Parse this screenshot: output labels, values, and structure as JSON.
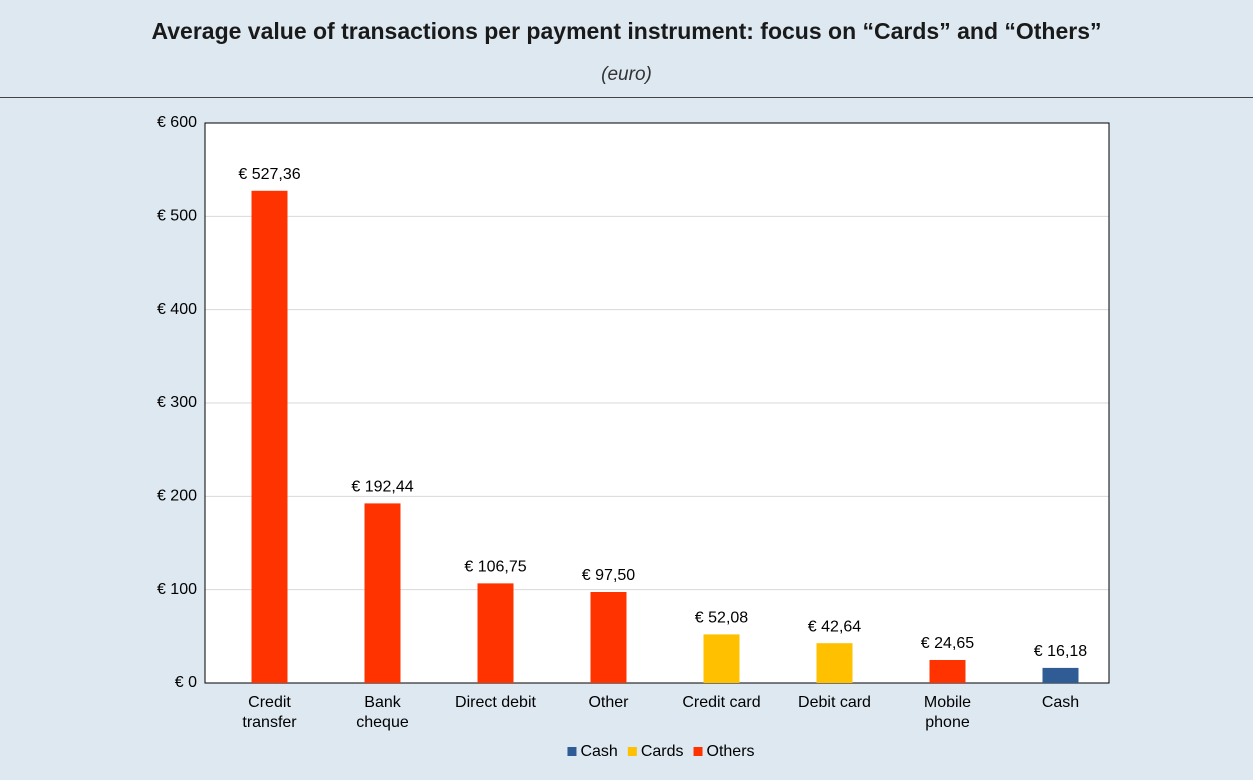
{
  "chart_data": {
    "type": "bar",
    "title": "Average value of transactions per payment instrument: focus on “Cards” and “Others”",
    "subtitle": "(euro)",
    "categories": [
      "Credit\ntransfer",
      "Bank\ncheque",
      "Direct debit",
      "Other",
      "Credit card",
      "Debit card",
      "Mobile\nphone",
      "Cash"
    ],
    "values": [
      527.36,
      192.44,
      106.75,
      97.5,
      52.08,
      42.64,
      24.65,
      16.18
    ],
    "value_labels": [
      "€ 527,36",
      "€ 192,44",
      "€ 106,75",
      "€ 97,50",
      "€ 52,08",
      "€ 42,64",
      "€ 24,65",
      "€ 16,18"
    ],
    "colors": [
      "#ff3300",
      "#ff3300",
      "#ff3300",
      "#ff3300",
      "#ffc000",
      "#ffc000",
      "#ff3300",
      "#2f5c95"
    ],
    "legend": [
      {
        "name": "Cash",
        "color": "#2f5c95"
      },
      {
        "name": "Cards",
        "color": "#ffc000"
      },
      {
        "name": "Others",
        "color": "#ff3300"
      }
    ],
    "ylim": [
      0,
      600
    ],
    "yticks": [
      {
        "value": 0,
        "label": "€ 0"
      },
      {
        "value": 100,
        "label": "€ 100"
      },
      {
        "value": 200,
        "label": "€ 200"
      },
      {
        "value": 300,
        "label": "€ 300"
      },
      {
        "value": 400,
        "label": "€ 400"
      },
      {
        "value": 500,
        "label": "€ 500"
      },
      {
        "value": 600,
        "label": "€ 600"
      }
    ],
    "grid": true
  }
}
